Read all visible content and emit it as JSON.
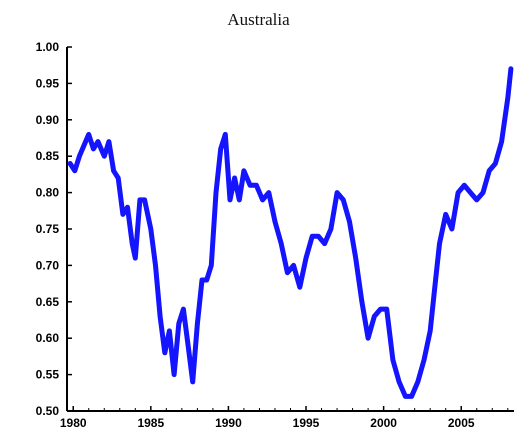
{
  "chart_data": {
    "type": "line",
    "title": "Australia",
    "xlabel": "",
    "ylabel": "",
    "x_ticks": [
      "1980",
      "1985",
      "1990",
      "1995",
      "2000",
      "2005"
    ],
    "y_ticks": [
      "0.50",
      "0.55",
      "0.60",
      "0.65",
      "0.70",
      "0.75",
      "0.80",
      "0.85",
      "0.90",
      "0.95",
      "1.00"
    ],
    "xlim": [
      1979.6,
      2008.4
    ],
    "ylim": [
      0.5,
      1.0
    ],
    "grid": false,
    "series": [
      {
        "color": "#1414ff",
        "x": [
          1979.8,
          1980.1,
          1980.4,
          1980.8,
          1981.0,
          1981.3,
          1981.6,
          1982.0,
          1982.3,
          1982.6,
          1982.9,
          1983.2,
          1983.5,
          1983.8,
          1984.0,
          1984.3,
          1984.6,
          1985.0,
          1985.3,
          1985.6,
          1985.9,
          1986.2,
          1986.5,
          1986.8,
          1987.1,
          1987.4,
          1987.7,
          1988.0,
          1988.3,
          1988.6,
          1988.9,
          1989.2,
          1989.5,
          1989.8,
          1990.1,
          1990.4,
          1990.7,
          1991.0,
          1991.4,
          1991.8,
          1992.2,
          1992.6,
          1993.0,
          1993.4,
          1993.8,
          1994.2,
          1994.6,
          1995.0,
          1995.4,
          1995.8,
          1996.2,
          1996.6,
          1997.0,
          1997.4,
          1997.8,
          1998.2,
          1998.6,
          1999.0,
          1999.4,
          1999.8,
          2000.2,
          2000.6,
          2001.0,
          2001.4,
          2001.8,
          2002.2,
          2002.6,
          2003.0,
          2003.3,
          2003.6,
          2004.0,
          2004.4,
          2004.8,
          2005.2,
          2005.6,
          2006.0,
          2006.4,
          2006.8,
          2007.2,
          2007.6,
          2008.0,
          2008.2
        ],
        "y": [
          0.84,
          0.83,
          0.85,
          0.87,
          0.88,
          0.86,
          0.87,
          0.85,
          0.87,
          0.83,
          0.82,
          0.77,
          0.78,
          0.73,
          0.71,
          0.79,
          0.79,
          0.75,
          0.7,
          0.63,
          0.58,
          0.61,
          0.55,
          0.62,
          0.64,
          0.59,
          0.54,
          0.62,
          0.68,
          0.68,
          0.7,
          0.8,
          0.86,
          0.88,
          0.79,
          0.82,
          0.79,
          0.83,
          0.81,
          0.81,
          0.79,
          0.8,
          0.76,
          0.73,
          0.69,
          0.7,
          0.67,
          0.71,
          0.74,
          0.74,
          0.73,
          0.75,
          0.8,
          0.79,
          0.76,
          0.71,
          0.65,
          0.6,
          0.63,
          0.64,
          0.64,
          0.57,
          0.54,
          0.52,
          0.52,
          0.54,
          0.57,
          0.61,
          0.67,
          0.73,
          0.77,
          0.75,
          0.8,
          0.81,
          0.8,
          0.79,
          0.8,
          0.83,
          0.84,
          0.87,
          0.93,
          0.97
        ]
      }
    ]
  }
}
